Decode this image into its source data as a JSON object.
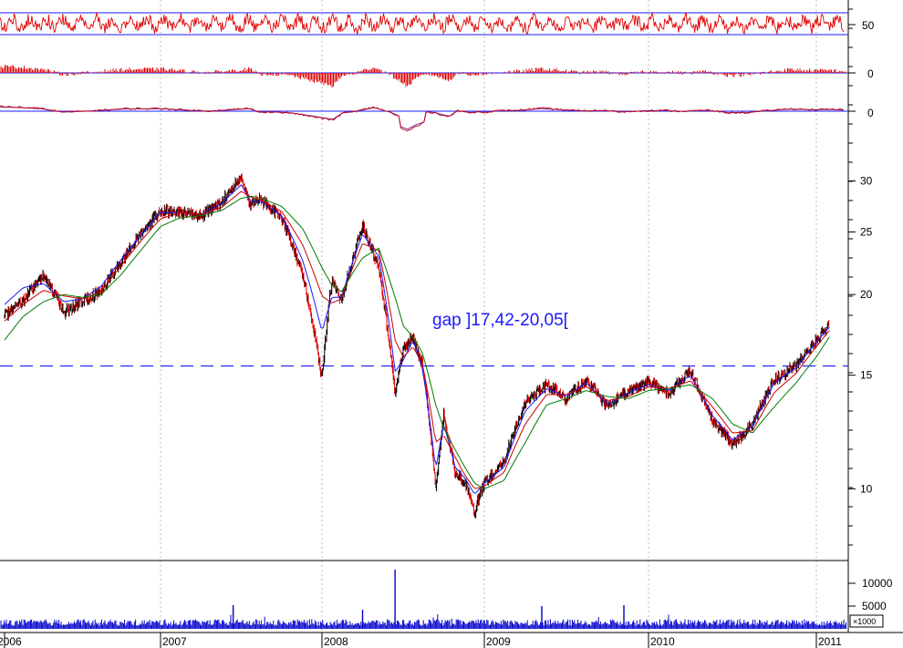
{
  "chart_data": [
    {
      "type": "line",
      "panel": "indicator-1",
      "ref_lines": [
        50
      ],
      "tick_labels": [
        "50"
      ],
      "colors": {
        "series": "#e00000",
        "ref_line": "#1a1aff"
      }
    },
    {
      "type": "bar",
      "panel": "indicator-2",
      "tick_labels": [
        "0"
      ],
      "colors": {
        "bars": "#e00000",
        "zero_line": "#1a1aff"
      }
    },
    {
      "type": "line",
      "panel": "indicator-3",
      "tick_labels": [
        "0"
      ],
      "colors": {
        "line_a": "#d00000",
        "line_b": "#6a2bb0",
        "zero_line": "#1a1aff"
      }
    },
    {
      "type": "line",
      "panel": "price",
      "scale": "log",
      "ylim": [
        8,
        34
      ],
      "y_ticks": [
        10,
        15,
        20,
        25,
        30
      ],
      "tick_labels": [
        "10",
        "15",
        "20",
        "25",
        "30"
      ],
      "x_tick_labels": [
        "2006",
        "2007",
        "2008",
        "2009",
        "2010",
        "2011"
      ],
      "x": [
        2006.0,
        2006.12,
        2006.25,
        2006.38,
        2006.5,
        2006.62,
        2006.75,
        2006.88,
        2007.0,
        2007.12,
        2007.25,
        2007.38,
        2007.5,
        2007.56,
        2007.62,
        2007.75,
        2007.88,
        2008.0,
        2008.06,
        2008.12,
        2008.25,
        2008.35,
        2008.45,
        2008.5,
        2008.56,
        2008.62,
        2008.7,
        2008.75,
        2008.82,
        2008.88,
        2008.94,
        2009.0,
        2009.12,
        2009.25,
        2009.38,
        2009.5,
        2009.62,
        2009.75,
        2009.88,
        2010.0,
        2010.12,
        2010.25,
        2010.38,
        2010.5,
        2010.62,
        2010.75,
        2010.88,
        2011.0,
        2011.08
      ],
      "series": [
        {
          "values": [
            18.5,
            19.6,
            21.5,
            18.8,
            19.5,
            20.3,
            22.5,
            25.0,
            27.0,
            26.8,
            26.5,
            27.8,
            30.5,
            27.5,
            28.0,
            26.3,
            21.5,
            14.8,
            21.0,
            19.5,
            25.5,
            22.0,
            14.0,
            16.5,
            17.2,
            15.5,
            10.0,
            13.0,
            10.6,
            10.2,
            9.2,
            10.2,
            11.0,
            13.6,
            14.5,
            13.8,
            14.7,
            13.4,
            14.2,
            14.6,
            14.1,
            15.2,
            12.8,
            11.7,
            12.6,
            14.8,
            15.5,
            17.0,
            18.0
          ],
          "color": "#000000"
        },
        {
          "values": [
            19.3,
            20.5,
            20.8,
            19.5,
            19.7,
            20.6,
            22.7,
            24.8,
            26.8,
            26.8,
            26.6,
            27.7,
            29.6,
            27.8,
            27.9,
            26.5,
            22.6,
            17.5,
            19.8,
            19.8,
            24.8,
            22.9,
            15.2,
            15.8,
            17.0,
            15.3,
            10.7,
            12.6,
            10.8,
            10.4,
            9.8,
            10.2,
            10.8,
            13.2,
            14.3,
            13.9,
            14.6,
            13.5,
            14.1,
            14.5,
            14.2,
            15.0,
            13.0,
            11.9,
            12.5,
            14.6,
            15.4,
            16.9,
            17.8
          ],
          "color": "#1a1aff"
        },
        {
          "values": [
            18.2,
            19.3,
            20.3,
            19.9,
            19.7,
            20.2,
            22.2,
            24.3,
            26.2,
            26.8,
            26.6,
            27.3,
            28.9,
            28.3,
            28.0,
            26.9,
            23.9,
            19.9,
            19.4,
            19.7,
            24.0,
            23.4,
            17.0,
            16.0,
            16.6,
            15.6,
            11.8,
            12.1,
            11.2,
            10.5,
            10.0,
            10.1,
            10.6,
            12.6,
            14.0,
            14.0,
            14.4,
            13.7,
            13.9,
            14.4,
            14.3,
            14.7,
            13.4,
            12.2,
            12.3,
            14.1,
            15.1,
            16.6,
            17.6
          ],
          "color": "#c80000"
        },
        {
          "values": [
            17.0,
            18.5,
            19.5,
            20.0,
            19.8,
            20.0,
            21.5,
            23.5,
            25.5,
            26.3,
            26.5,
            27.0,
            28.2,
            28.4,
            28.2,
            27.4,
            25.3,
            22.0,
            20.7,
            20.2,
            22.8,
            23.6,
            19.8,
            17.9,
            17.2,
            16.2,
            13.5,
            12.4,
            11.5,
            10.8,
            10.2,
            10.0,
            10.3,
            11.8,
            13.5,
            13.8,
            14.2,
            13.9,
            13.8,
            14.2,
            14.3,
            14.5,
            13.8,
            12.6,
            12.2,
            13.4,
            14.6,
            16.0,
            17.2
          ],
          "color": "#007a00"
        }
      ],
      "ref_lines": [
        15.5
      ],
      "ref_line_color": "#1a1aff",
      "annotations": [
        "gap ]17,42-20,05["
      ]
    },
    {
      "type": "bar",
      "panel": "volume",
      "ylim": [
        0,
        14000
      ],
      "y_ticks": [
        5000,
        10000
      ],
      "tick_labels": [
        "5000",
        "10000"
      ],
      "unit_label": "×1000",
      "color": "#0000cc",
      "peaks": [
        {
          "x": 2008.45,
          "value": 13000
        },
        {
          "x": 2007.45,
          "value": 5200
        },
        {
          "x": 2009.35,
          "value": 5000
        },
        {
          "x": 2009.85,
          "value": 5200
        },
        {
          "x": 2008.25,
          "value": 4200
        }
      ]
    }
  ]
}
